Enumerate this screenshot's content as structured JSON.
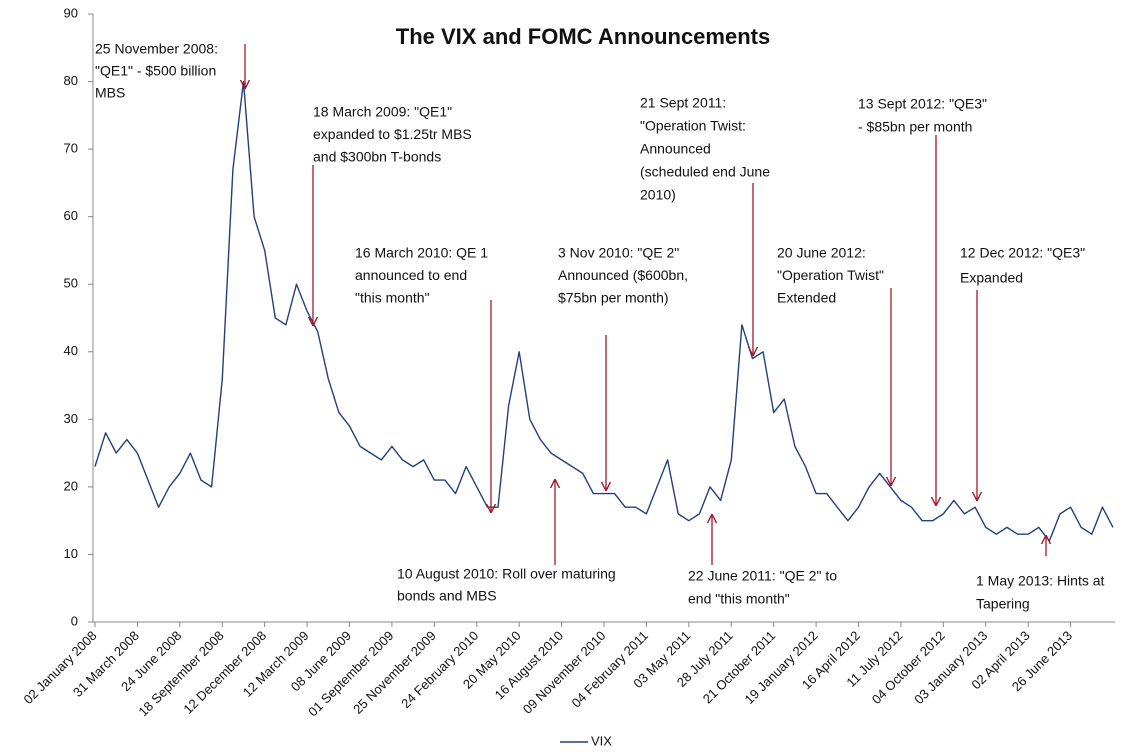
{
  "chart_data": {
    "type": "line",
    "title": "The VIX and FOMC Announcements",
    "categories": [
      "02 January 2008",
      null,
      null,
      null,
      "31 March 2008",
      null,
      null,
      null,
      "24 June 2008",
      null,
      null,
      null,
      "18 September 2008",
      null,
      null,
      null,
      "12 December 2008",
      null,
      null,
      null,
      "12 March 2009",
      null,
      null,
      null,
      "08 June 2009",
      null,
      null,
      null,
      "01 September 2009",
      null,
      null,
      null,
      "25 November 2009",
      null,
      null,
      null,
      "24 February 2010",
      null,
      null,
      null,
      "20 May 2010",
      null,
      null,
      null,
      "16 August 2010",
      null,
      null,
      null,
      "09 November 2010",
      null,
      null,
      null,
      "04 February 2011",
      null,
      null,
      null,
      "03 May 2011",
      null,
      null,
      null,
      "28 July 2011",
      null,
      null,
      null,
      "21 October 2011",
      null,
      null,
      null,
      "19 January 2012",
      null,
      null,
      null,
      "16 April 2012",
      null,
      null,
      null,
      "11 July 2012",
      null,
      null,
      null,
      "04 October 2012",
      null,
      null,
      null,
      "03 January 2013",
      null,
      null,
      null,
      "02 April 2013",
      null,
      null,
      null,
      "26 June 2013",
      null,
      null,
      null,
      null
    ],
    "series": [
      {
        "name": "VIX",
        "color": "#22407a",
        "values": [
          23,
          28,
          25,
          27,
          25,
          21,
          17,
          20,
          22,
          25,
          21,
          20,
          36,
          67,
          80,
          60,
          55,
          45,
          44,
          50,
          46,
          43,
          36,
          31,
          29,
          26,
          25,
          24,
          26,
          24,
          23,
          24,
          21,
          21,
          19,
          23,
          20,
          17,
          17,
          32,
          40,
          30,
          27,
          25,
          24,
          23,
          22,
          19,
          19,
          19,
          17,
          17,
          16,
          20,
          24,
          16,
          15,
          16,
          20,
          18,
          24,
          44,
          39,
          40,
          31,
          33,
          26,
          23,
          19,
          19,
          17,
          15,
          17,
          20,
          22,
          20,
          18,
          17,
          15,
          15,
          16,
          18,
          16,
          17,
          14,
          13,
          14,
          13,
          13,
          14,
          12,
          16,
          17,
          14,
          13,
          17,
          14
        ]
      }
    ],
    "ylim": [
      0,
      90
    ],
    "yticks": [
      0,
      10,
      20,
      30,
      40,
      50,
      60,
      70,
      80,
      90
    ],
    "legend": "bottom",
    "annotations": [
      {
        "lines": [
          "25 November 2008:",
          "\"QE1\" - $500 billion",
          "MBS"
        ]
      },
      {
        "lines": [
          "18 March 2009: \"QE1\"",
          "expanded to $1.25tr MBS",
          "and $300bn T-bonds"
        ]
      },
      {
        "lines": [
          "16 March 2010: QE 1",
          "announced to end",
          "\"this month\""
        ]
      },
      {
        "lines": [
          "10 August 2010: Roll over maturing",
          "bonds and MBS"
        ]
      },
      {
        "lines": [
          "3 Nov 2010: \"QE 2\"",
          "Announced ($600bn,",
          "$75bn per month)"
        ]
      },
      {
        "lines": [
          "21 Sept 2011:",
          "\"Operation Twist:",
          "Announced",
          "(scheduled end June",
          "2010)"
        ]
      },
      {
        "lines": [
          "22 June 2011: \"QE 2\" to",
          "end \"this month\""
        ]
      },
      {
        "lines": [
          "20 June 2012:",
          "\"Operation Twist\"",
          "Extended"
        ]
      },
      {
        "lines": [
          "13 Sept 2012: \"QE3\"",
          "- $85bn per month"
        ]
      },
      {
        "lines": [
          "12 Dec 2012: \"QE3\"",
          "Expanded"
        ]
      },
      {
        "lines": [
          "1 May 2013: Hints at",
          "Tapering"
        ]
      }
    ]
  }
}
